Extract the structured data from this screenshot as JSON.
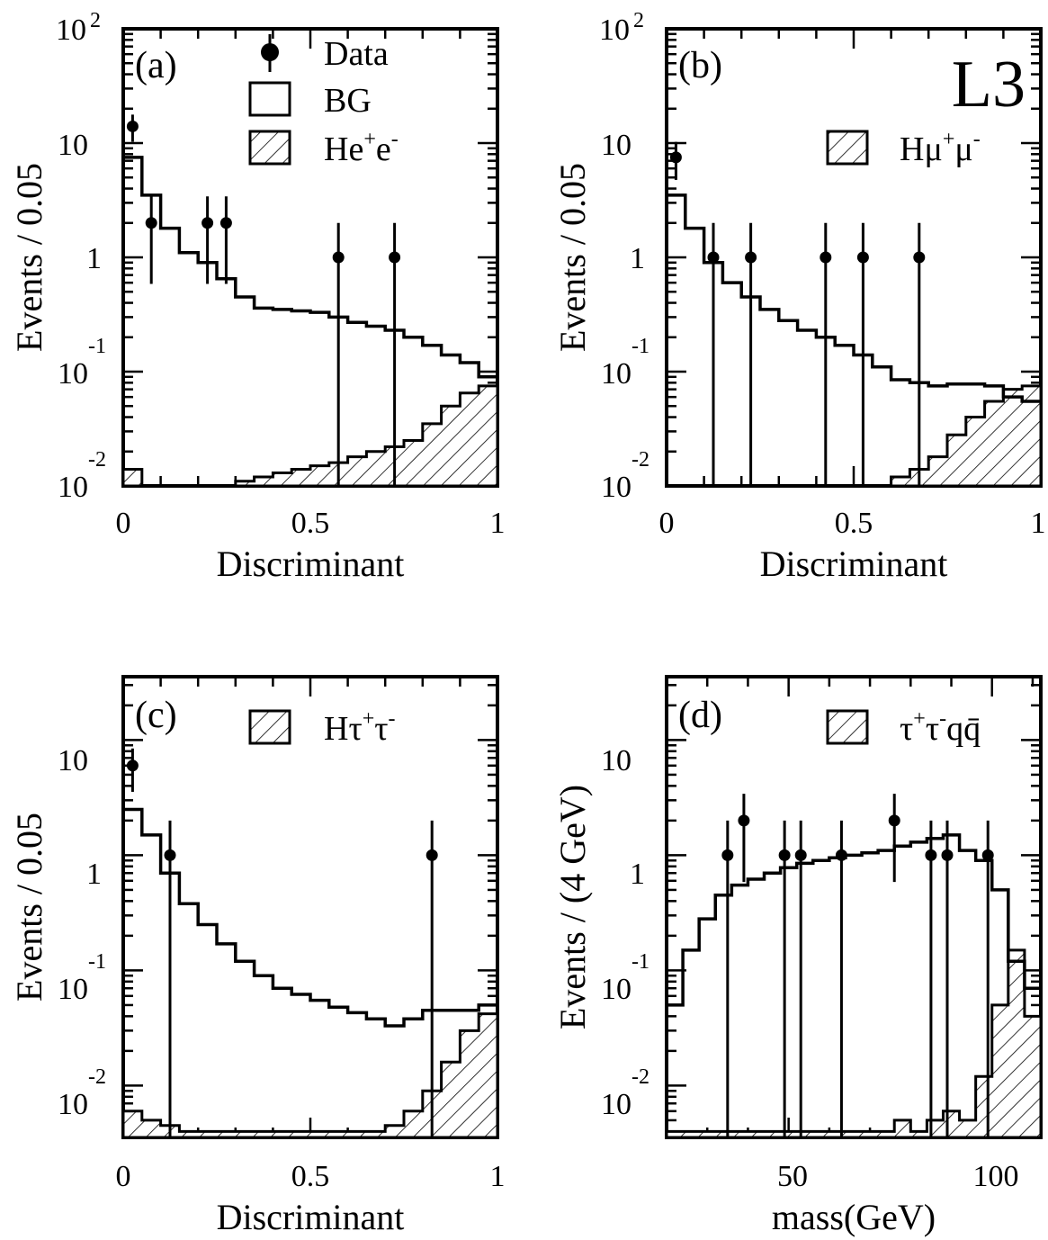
{
  "figure_label": "L3",
  "legend_common": {
    "data_label": "Data",
    "bg_label": "BG"
  },
  "chart_data": [
    {
      "id": "a",
      "panel_label": "(a)",
      "type": "histogram-log",
      "xlabel": "Discriminant",
      "ylabel": "Events / 0.05",
      "x_ticks": [
        "0",
        "0.5",
        "1"
      ],
      "xlim": [
        0,
        1
      ],
      "ylim_log10": [
        -2,
        2
      ],
      "y_ticks": [
        {
          "exp": 2,
          "base": "10",
          "sup": "2"
        },
        {
          "exp": 1,
          "base": "10",
          "sup": ""
        },
        {
          "exp": 0,
          "base": "1",
          "sup": ""
        },
        {
          "exp": -1,
          "base": "10",
          "sup": "-1"
        },
        {
          "exp": -2,
          "base": "10",
          "sup": "-2"
        }
      ],
      "legend": {
        "signal_main": "He",
        "signal_sup1": "+",
        "signal_rest": "e",
        "signal_sup2": "-"
      },
      "bins": [
        0,
        0.05,
        0.1,
        0.15,
        0.2,
        0.25,
        0.3,
        0.35,
        0.4,
        0.45,
        0.5,
        0.55,
        0.6,
        0.65,
        0.7,
        0.75,
        0.8,
        0.85,
        0.9,
        0.95,
        1.0
      ],
      "background": [
        7.5,
        3.5,
        1.8,
        1.1,
        0.9,
        0.65,
        0.45,
        0.36,
        0.35,
        0.34,
        0.33,
        0.3,
        0.27,
        0.25,
        0.23,
        0.2,
        0.17,
        0.14,
        0.12,
        0.09
      ],
      "signal": [
        0.014,
        0.01,
        0.01,
        0.01,
        0.01,
        0.01,
        0.011,
        0.012,
        0.013,
        0.014,
        0.015,
        0.016,
        0.018,
        0.02,
        0.022,
        0.025,
        0.035,
        0.05,
        0.065,
        0.075
      ],
      "data": [
        {
          "x": 0.025,
          "y": 14
        },
        {
          "x": 0.075,
          "y": 2
        },
        {
          "x": 0.225,
          "y": 2
        },
        {
          "x": 0.275,
          "y": 2
        },
        {
          "x": 0.575,
          "y": 1
        },
        {
          "x": 0.725,
          "y": 1
        }
      ]
    },
    {
      "id": "b",
      "panel_label": "(b)",
      "type": "histogram-log",
      "xlabel": "Discriminant",
      "ylabel": "Events / 0.05",
      "x_ticks": [
        "0",
        "0.5",
        "1"
      ],
      "xlim": [
        0,
        1
      ],
      "ylim_log10": [
        -2,
        2
      ],
      "y_ticks": [
        {
          "exp": 2,
          "base": "10",
          "sup": "2"
        },
        {
          "exp": 1,
          "base": "10",
          "sup": ""
        },
        {
          "exp": 0,
          "base": "1",
          "sup": ""
        },
        {
          "exp": -1,
          "base": "10",
          "sup": "-1"
        },
        {
          "exp": -2,
          "base": "10",
          "sup": "-2"
        }
      ],
      "legend": {
        "signal_main": "Hμ",
        "signal_sup1": "+",
        "signal_rest": "μ",
        "signal_sup2": "-"
      },
      "bins": [
        0,
        0.05,
        0.1,
        0.15,
        0.2,
        0.25,
        0.3,
        0.35,
        0.4,
        0.45,
        0.5,
        0.55,
        0.6,
        0.65,
        0.7,
        0.75,
        0.8,
        0.85,
        0.9,
        0.95,
        1.0
      ],
      "background": [
        3.5,
        1.8,
        0.9,
        0.6,
        0.45,
        0.35,
        0.28,
        0.23,
        0.2,
        0.17,
        0.14,
        0.11,
        0.085,
        0.08,
        0.075,
        0.078,
        0.078,
        0.075,
        0.06,
        0.055
      ],
      "signal": [
        0.008,
        0.008,
        0.008,
        0.008,
        0.008,
        0.008,
        0.008,
        0.008,
        0.008,
        0.008,
        0.008,
        0.01,
        0.012,
        0.014,
        0.018,
        0.028,
        0.04,
        0.055,
        0.07,
        0.075
      ],
      "data": [
        {
          "x": 0.025,
          "y": 7.5
        },
        {
          "x": 0.125,
          "y": 1
        },
        {
          "x": 0.225,
          "y": 1
        },
        {
          "x": 0.425,
          "y": 1
        },
        {
          "x": 0.525,
          "y": 1
        },
        {
          "x": 0.675,
          "y": 1
        }
      ]
    },
    {
      "id": "c",
      "panel_label": "(c)",
      "type": "histogram-log",
      "xlabel": "Discriminant",
      "ylabel": "Events / 0.05",
      "x_ticks": [
        "0",
        "0.5",
        "1"
      ],
      "xlim": [
        0,
        1
      ],
      "ylim_log10": [
        -2.45,
        1.55
      ],
      "y_ticks": [
        {
          "exp": 1,
          "base": "10",
          "sup": ""
        },
        {
          "exp": 0,
          "base": "1",
          "sup": ""
        },
        {
          "exp": -1,
          "base": "10",
          "sup": "-1"
        },
        {
          "exp": -2,
          "base": "10",
          "sup": "-2"
        }
      ],
      "legend": {
        "signal_main": "Hτ",
        "signal_sup1": "+",
        "signal_rest": "τ",
        "signal_sup2": "-"
      },
      "bins": [
        0,
        0.05,
        0.1,
        0.15,
        0.2,
        0.25,
        0.3,
        0.35,
        0.4,
        0.45,
        0.5,
        0.55,
        0.6,
        0.65,
        0.7,
        0.75,
        0.8,
        0.85,
        0.9,
        0.95,
        1.0
      ],
      "background": [
        2.5,
        1.5,
        0.7,
        0.38,
        0.25,
        0.17,
        0.12,
        0.09,
        0.07,
        0.062,
        0.055,
        0.048,
        0.043,
        0.038,
        0.033,
        0.038,
        0.045,
        0.045,
        0.045,
        0.05
      ],
      "signal": [
        0.006,
        0.005,
        0.0045,
        0.004,
        0.004,
        0.004,
        0.004,
        0.004,
        0.004,
        0.004,
        0.004,
        0.004,
        0.004,
        0.004,
        0.0045,
        0.006,
        0.009,
        0.016,
        0.03,
        0.042
      ],
      "data": [
        {
          "x": 0.025,
          "y": 6
        },
        {
          "x": 0.125,
          "y": 1
        },
        {
          "x": 0.825,
          "y": 1
        }
      ]
    },
    {
      "id": "d",
      "panel_label": "(d)",
      "type": "histogram-log",
      "xlabel": "mass(GeV)",
      "ylabel": "Events / (4 GeV)",
      "x_ticks": [
        "50",
        "100"
      ],
      "xlim": [
        20,
        112
      ],
      "ylim_log10": [
        -2.45,
        1.55
      ],
      "y_ticks": [
        {
          "exp": 1,
          "base": "10",
          "sup": ""
        },
        {
          "exp": 0,
          "base": "1",
          "sup": ""
        },
        {
          "exp": -1,
          "base": "10",
          "sup": "-1"
        },
        {
          "exp": -2,
          "base": "10",
          "sup": "-2"
        }
      ],
      "legend": {
        "signal_main": "τ",
        "signal_sup1": "+",
        "signal_rest": "τ",
        "signal_sup2": "-",
        "signal_tail": "qq̄"
      },
      "bins": [
        20,
        24,
        28,
        32,
        36,
        40,
        44,
        48,
        52,
        56,
        60,
        64,
        68,
        72,
        76,
        80,
        84,
        88,
        92,
        96,
        100,
        104,
        108,
        112
      ],
      "background": [
        0.05,
        0.15,
        0.28,
        0.45,
        0.55,
        0.62,
        0.7,
        0.78,
        0.85,
        0.9,
        0.95,
        1.0,
        1.05,
        1.1,
        1.2,
        1.3,
        1.4,
        1.5,
        1.1,
        0.9,
        0.5,
        0.12,
        0.07
      ],
      "signal": [
        0.004,
        0.004,
        0.004,
        0.004,
        0.004,
        0.004,
        0.004,
        0.004,
        0.004,
        0.004,
        0.004,
        0.004,
        0.004,
        0.004,
        0.005,
        0.004,
        0.005,
        0.006,
        0.005,
        0.012,
        0.05,
        0.15,
        0.04
      ],
      "data": [
        {
          "x": 35,
          "y": 1
        },
        {
          "x": 39,
          "y": 2
        },
        {
          "x": 49,
          "y": 1
        },
        {
          "x": 53,
          "y": 1
        },
        {
          "x": 63,
          "y": 1
        },
        {
          "x": 76,
          "y": 2
        },
        {
          "x": 85,
          "y": 1
        },
        {
          "x": 89,
          "y": 1
        },
        {
          "x": 99,
          "y": 1
        }
      ]
    }
  ]
}
